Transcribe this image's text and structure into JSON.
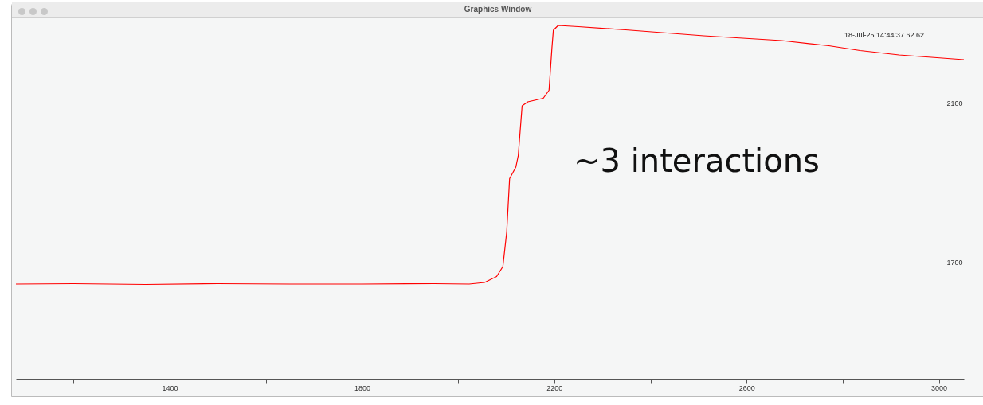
{
  "chart_data": {
    "type": "line",
    "title": "Graphics Window",
    "x": [
      1080,
      1200,
      1350,
      1500,
      1650,
      1800,
      1950,
      2023,
      2055,
      2080,
      2093,
      2101,
      2107,
      2120,
      2125,
      2133,
      2145,
      2177,
      2189,
      2195,
      2198,
      2208,
      2250,
      2348,
      2511,
      2673,
      2771,
      2836,
      2917,
      3052
    ],
    "series": [
      {
        "color": "#ff0000",
        "values": [
          1644,
          1645,
          1643,
          1645,
          1644,
          1644,
          1645,
          1644,
          1648,
          1663,
          1688,
          1775,
          1909,
          1938,
          1967,
          2092,
          2102,
          2111,
          2131,
          2237,
          2282,
          2294,
          2291,
          2283,
          2268,
          2256,
          2243,
          2231,
          2220,
          2208
        ]
      }
    ],
    "xlim": [
      1080,
      3052
    ],
    "xticks": [
      {
        "value": 1200,
        "label": null
      },
      1400,
      {
        "value": 1600,
        "label": null
      },
      1800,
      {
        "value": 2000,
        "label": null
      },
      2200,
      {
        "value": 2400,
        "label": null
      },
      2600,
      {
        "value": 2800,
        "label": null
      },
      3000
    ],
    "ylim": [
      1406,
      2310
    ],
    "yticks": [
      1700,
      2100
    ],
    "annotations": [
      "~3 interactions",
      "18-Jul-25 14:44:37   62  62"
    ],
    "grid": false
  }
}
